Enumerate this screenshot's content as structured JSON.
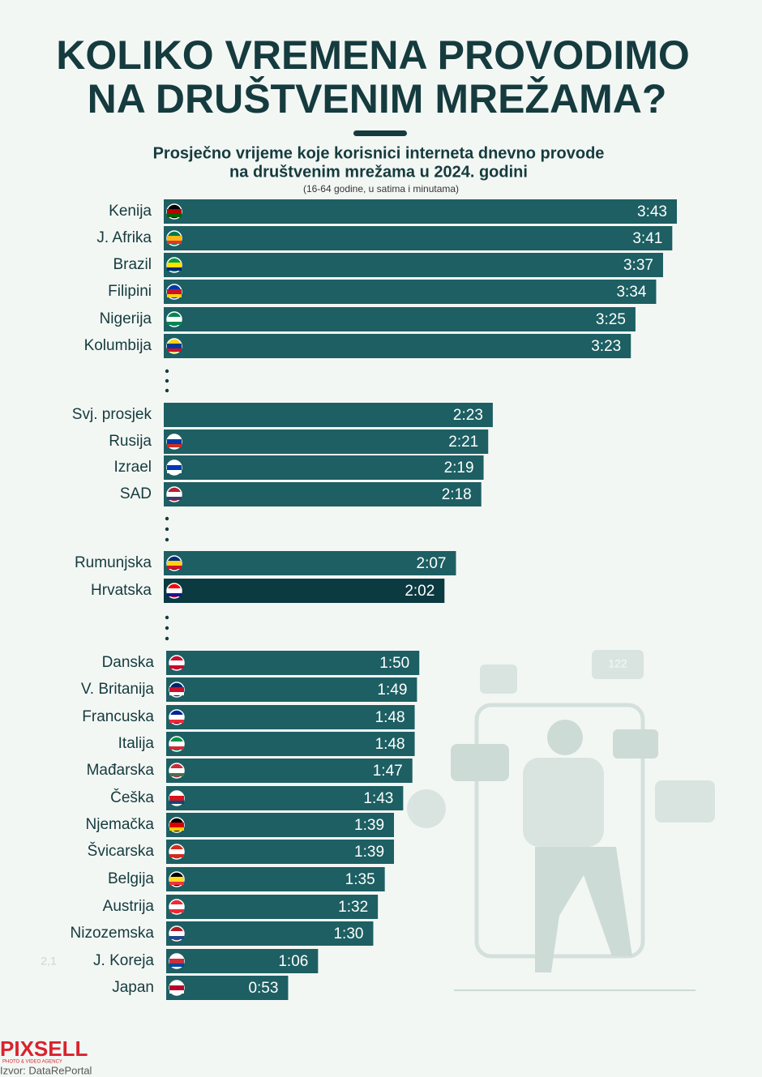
{
  "chart_data": {
    "type": "bar",
    "title": [
      "KOLIKO VREMENA PROVODIMO",
      "NA DRUŠTVENIM MREŽAMA?"
    ],
    "subtitle": [
      "Prosječno vrijeme koje korisnici interneta dnevno provode",
      "na društvenim mrežama u 2024. godini"
    ],
    "note": "(16-64 godine, u satima i minutama)",
    "categories": [
      "Kenija",
      "J. Afrika",
      "Brazil",
      "Filipini",
      "Nigerija",
      "Kolumbija",
      "Svj. prosjek",
      "Rusija",
      "Izrael",
      "SAD",
      "Rumunjska",
      "Hrvatska",
      "Danska",
      "V. Britanija",
      "Francuska",
      "Italija",
      "Mađarska",
      "Češka",
      "Njemačka",
      "Švicarska",
      "Belgija",
      "Austrija",
      "Nizozemska",
      "J. Koreja",
      "Japan"
    ],
    "values": [
      223,
      221,
      217,
      214,
      205,
      203,
      143,
      141,
      139,
      138,
      127,
      122,
      110,
      109,
      108,
      108,
      107,
      103,
      99,
      99,
      95,
      92,
      90,
      66,
      53
    ],
    "value_labels": [
      "3:43",
      "3:41",
      "3:37",
      "3:34",
      "3:25",
      "3:23",
      "2:23",
      "2:21",
      "2:19",
      "2:18",
      "2:07",
      "2:02",
      "1:50",
      "1:49",
      "1:48",
      "1:48",
      "1:47",
      "1:43",
      "1:39",
      "1:39",
      "1:35",
      "1:32",
      "1:30",
      "1:06",
      "0:53"
    ],
    "colors": [
      "#1d5f63",
      "#1d5f63",
      "#1d5f63",
      "#1d5f63",
      "#1d5f63",
      "#1d5f63",
      "#1d5f63",
      "#1d5f63",
      "#1d5f63",
      "#1d5f63",
      "#1d5f63",
      "#0b3a40",
      "#1d5f63",
      "#1d5f63",
      "#1d5f63",
      "#1d5f63",
      "#1d5f63",
      "#1d5f63",
      "#1d5f63",
      "#1d5f63",
      "#1d5f63",
      "#1d5f63",
      "#1d5f63",
      "#1d5f63",
      "#1d5f63"
    ],
    "annotation": "2,1",
    "likes": "122",
    "logo": "PIXSELL",
    "logo_tagline": "PHOTO & VIDEO AGENCY",
    "source": "Izvor: DataRePortal"
  }
}
